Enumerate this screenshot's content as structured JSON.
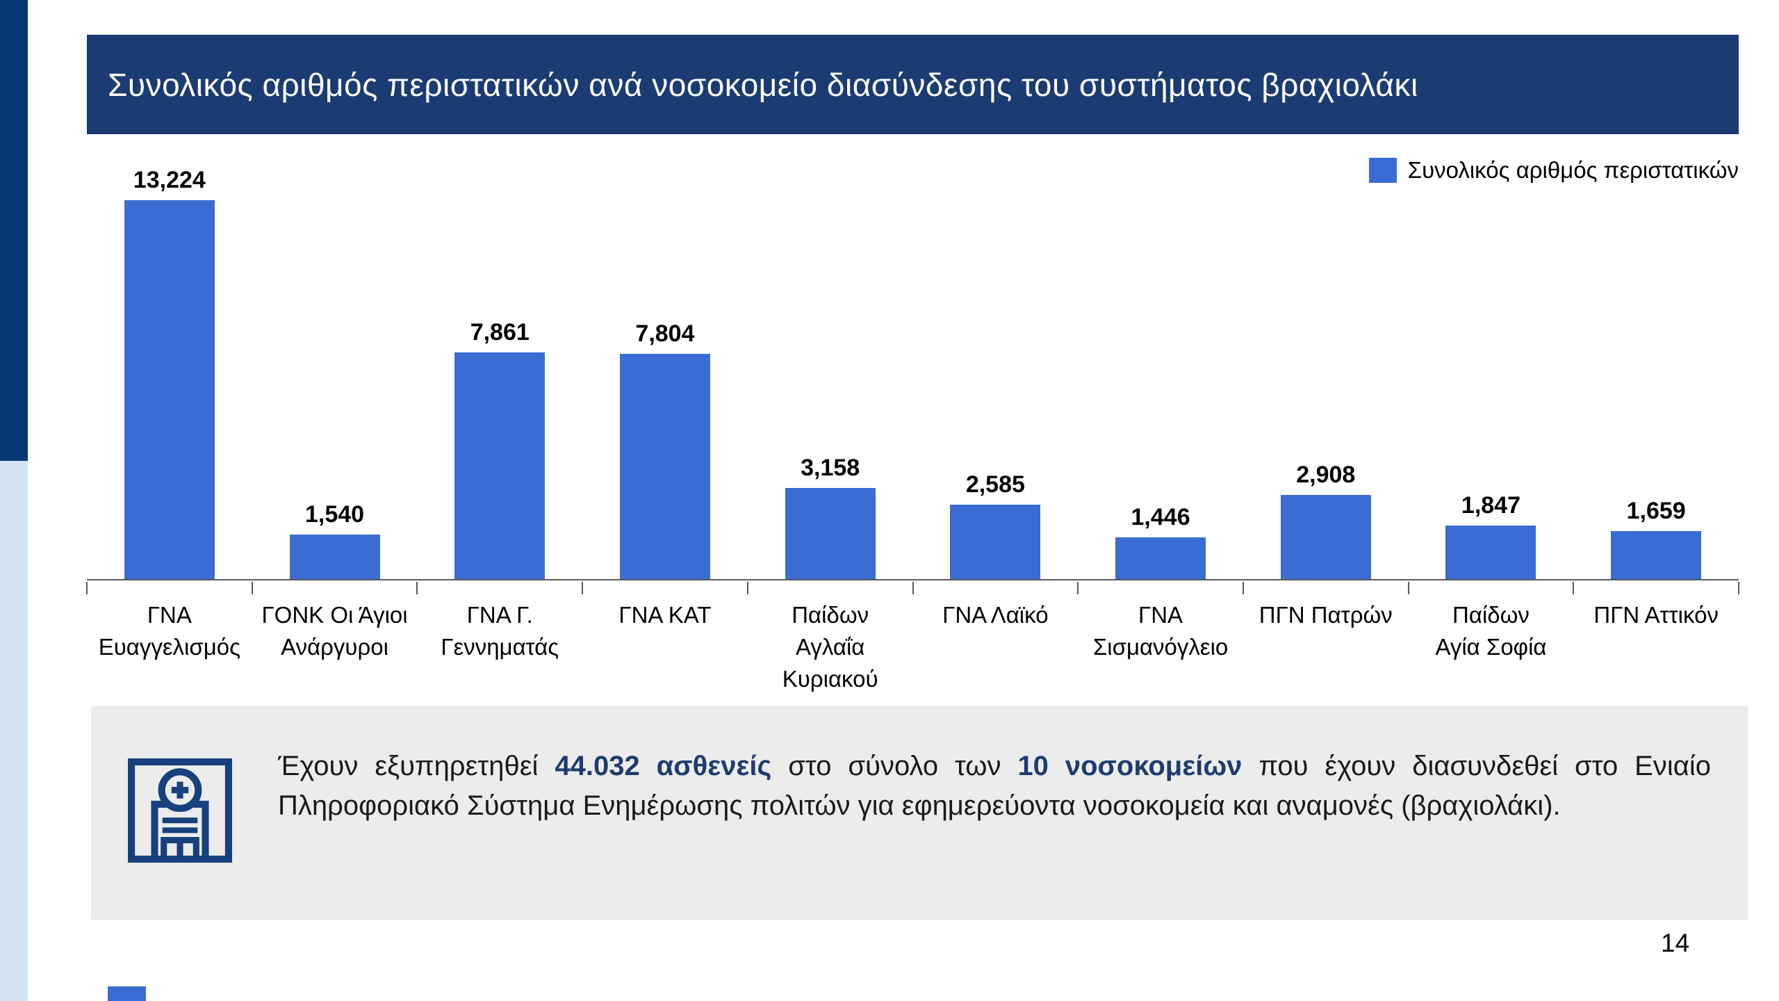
{
  "slide": {
    "title": "Συνολικός αριθμός περιστατικών ανά νοσοκομείο διασύνδεσης του συστήματος βραχιολάκι",
    "page_number": "14"
  },
  "legend": {
    "label": "Συνολικός αριθμός περιστατικών",
    "color": "#3A6CD3"
  },
  "chart_data": {
    "type": "bar",
    "title": "Συνολικός αριθμός περιστατικών ανά νοσοκομείο διασύνδεσης του συστήματος βραχιολάκι",
    "series_name": "Συνολικός αριθμός περιστατικών",
    "categories": [
      "ΓΝΑ Ευαγγελισμός",
      "ΓΟΝΚ Οι Άγιοι Ανάργυροι",
      "ΓΝΑ Γ. Γεννηματάς",
      "ΓΝΑ ΚΑΤ",
      "Παίδων Αγλαΐα Κυριακού",
      "ΓΝΑ Λαϊκό",
      "ΓΝΑ Σισμανόγλειο",
      "ΠΓΝ Πατρών",
      "Παίδων Αγία Σοφία",
      "ΠΓΝ Αττικόν"
    ],
    "category_lines": [
      [
        "ΓΝΑ",
        "Ευαγγελισμός"
      ],
      [
        "ΓΟΝΚ Οι Άγιοι",
        "Ανάργυροι"
      ],
      [
        "ΓΝΑ Γ.",
        "Γεννηματάς"
      ],
      [
        "ΓΝΑ ΚΑΤ"
      ],
      [
        "Παίδων",
        "Αγλαΐα",
        "Κυριακού"
      ],
      [
        "ΓΝΑ Λαϊκό"
      ],
      [
        "ΓΝΑ",
        "Σισμανόγλειο"
      ],
      [
        "ΠΓΝ Πατρών"
      ],
      [
        "Παίδων",
        "Αγία Σοφία"
      ],
      [
        "ΠΓΝ Αττικόν"
      ]
    ],
    "values": [
      13224,
      1540,
      7861,
      7804,
      3158,
      2585,
      1446,
      2908,
      1847,
      1659
    ],
    "value_labels": [
      "13,224",
      "1,540",
      "7,861",
      "7,804",
      "3,158",
      "2,585",
      "1,446",
      "2,908",
      "1,847",
      "1,659"
    ],
    "bar_color": "#3A6CD3",
    "ylim": [
      0,
      14000
    ],
    "grid": false,
    "legend_position": "top-right"
  },
  "info_box": {
    "icon": "hospital-icon",
    "text_parts": [
      {
        "text": "Έχουν εξυπηρετηθεί ",
        "bold": false
      },
      {
        "text": "44.032 ασθενείς",
        "bold": true
      },
      {
        "text": " στο σύνολο των ",
        "bold": false
      },
      {
        "text": "10 νοσοκομείων",
        "bold": true
      },
      {
        "text": " που έχουν διασυνδεθεί στο Ενιαίο Πληροφοριακό Σύστημα Ενημέρωσης πολιτών για εφημερεύοντα νοσοκομεία και αναμονές (βραχιολάκι).",
        "bold": false
      }
    ]
  },
  "colors": {
    "title_bar": "#1B3B73",
    "strip_dark": "#0A3778",
    "strip_light": "#D4E3F3",
    "bar": "#3A6CD3",
    "info_box_bg": "#ECECEC",
    "highlight_text": "#1F3C70",
    "icon_navy": "#17417E"
  }
}
